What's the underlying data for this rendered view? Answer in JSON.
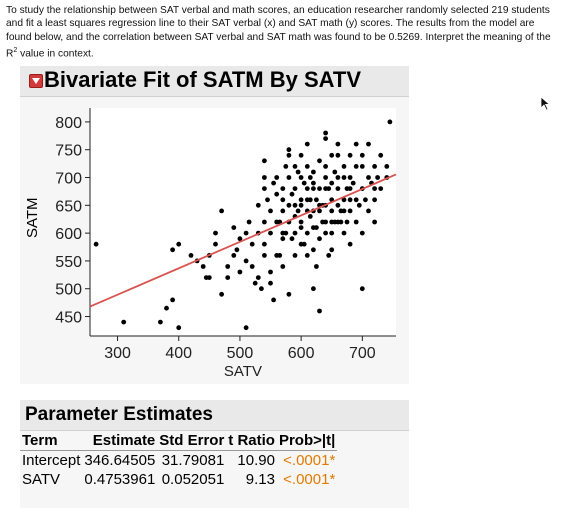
{
  "question": {
    "text": "To study the relationship between SAT verbal and math scores, an education researcher randomly selected 219 students and fit a least squares regression line to their SAT verbal (x) and SAT math (y) scores. The results from the model are found below, and the correlation between SAT verbal and SAT math was found to be 0.5269. Interpret the meaning of the R",
    "sup": "2",
    "tail": " value in context."
  },
  "fit": {
    "title": "Bivariate Fit of SATM By SATV"
  },
  "chart_data": {
    "type": "scatter",
    "title": "Bivariate Fit of SATM By SATV",
    "xlabel": "SATV",
    "ylabel": "SATM",
    "xlim": [
      255,
      755
    ],
    "ylim": [
      415,
      825
    ],
    "xticks": [
      300,
      400,
      500,
      600,
      700
    ],
    "yticks": [
      450,
      500,
      550,
      600,
      650,
      700,
      750,
      800
    ],
    "grid": false,
    "fit_line": {
      "intercept": 346.64505,
      "slope": 0.4753961,
      "color": "#d9534f"
    },
    "points": [
      [
        265,
        580
      ],
      [
        310,
        440
      ],
      [
        370,
        440
      ],
      [
        380,
        465
      ],
      [
        390,
        480
      ],
      [
        390,
        570
      ],
      [
        400,
        580
      ],
      [
        400,
        430
      ],
      [
        430,
        550
      ],
      [
        440,
        540
      ],
      [
        450,
        560
      ],
      [
        450,
        520
      ],
      [
        460,
        600
      ],
      [
        470,
        640
      ],
      [
        470,
        490
      ],
      [
        480,
        540
      ],
      [
        490,
        560
      ],
      [
        490,
        610
      ],
      [
        500,
        530
      ],
      [
        500,
        590
      ],
      [
        510,
        600
      ],
      [
        510,
        550
      ],
      [
        510,
        430
      ],
      [
        515,
        620
      ],
      [
        520,
        540
      ],
      [
        520,
        580
      ],
      [
        530,
        600
      ],
      [
        530,
        650
      ],
      [
        530,
        520
      ],
      [
        540,
        620
      ],
      [
        540,
        580
      ],
      [
        540,
        560
      ],
      [
        540,
        700
      ],
      [
        540,
        730
      ],
      [
        540,
        680
      ],
      [
        550,
        510
      ],
      [
        550,
        640
      ],
      [
        550,
        600
      ],
      [
        550,
        530
      ],
      [
        560,
        560
      ],
      [
        560,
        620
      ],
      [
        560,
        670
      ],
      [
        560,
        700
      ],
      [
        570,
        600
      ],
      [
        570,
        640
      ],
      [
        570,
        540
      ],
      [
        570,
        590
      ],
      [
        570,
        680
      ],
      [
        580,
        490
      ],
      [
        580,
        620
      ],
      [
        580,
        650
      ],
      [
        580,
        700
      ],
      [
        580,
        740
      ],
      [
        580,
        750
      ],
      [
        590,
        560
      ],
      [
        590,
        600
      ],
      [
        590,
        630
      ],
      [
        590,
        680
      ],
      [
        590,
        720
      ],
      [
        600,
        580
      ],
      [
        600,
        650
      ],
      [
        600,
        620
      ],
      [
        600,
        700
      ],
      [
        600,
        740
      ],
      [
        610,
        560
      ],
      [
        610,
        600
      ],
      [
        610,
        660
      ],
      [
        610,
        680
      ],
      [
        610,
        720
      ],
      [
        610,
        760
      ],
      [
        620,
        570
      ],
      [
        620,
        610
      ],
      [
        620,
        640
      ],
      [
        620,
        690
      ],
      [
        620,
        710
      ],
      [
        620,
        500
      ],
      [
        630,
        590
      ],
      [
        630,
        650
      ],
      [
        630,
        680
      ],
      [
        630,
        730
      ],
      [
        630,
        460
      ],
      [
        640,
        600
      ],
      [
        640,
        620
      ],
      [
        640,
        700
      ],
      [
        640,
        720
      ],
      [
        640,
        770
      ],
      [
        640,
        780
      ],
      [
        650,
        570
      ],
      [
        650,
        640
      ],
      [
        650,
        660
      ],
      [
        650,
        690
      ],
      [
        650,
        740
      ],
      [
        650,
        600
      ],
      [
        660,
        620
      ],
      [
        660,
        680
      ],
      [
        660,
        740
      ],
      [
        660,
        760
      ],
      [
        670,
        600
      ],
      [
        670,
        640
      ],
      [
        670,
        700
      ],
      [
        670,
        720
      ],
      [
        670,
        660
      ],
      [
        680,
        580
      ],
      [
        680,
        640
      ],
      [
        680,
        680
      ],
      [
        680,
        700
      ],
      [
        680,
        740
      ],
      [
        690,
        620
      ],
      [
        690,
        660
      ],
      [
        690,
        720
      ],
      [
        690,
        760
      ],
      [
        700,
        500
      ],
      [
        700,
        600
      ],
      [
        700,
        680
      ],
      [
        700,
        740
      ],
      [
        710,
        640
      ],
      [
        710,
        700
      ],
      [
        710,
        760
      ],
      [
        720,
        620
      ],
      [
        720,
        660
      ],
      [
        720,
        720
      ],
      [
        730,
        680
      ],
      [
        730,
        740
      ],
      [
        740,
        700
      ],
      [
        740,
        720
      ],
      [
        745,
        800
      ],
      [
        420,
        560
      ],
      [
        445,
        520
      ],
      [
        460,
        580
      ],
      [
        480,
        520
      ],
      [
        495,
        570
      ],
      [
        525,
        510
      ],
      [
        535,
        500
      ],
      [
        555,
        480
      ],
      [
        565,
        560
      ],
      [
        575,
        600
      ],
      [
        585,
        670
      ],
      [
        595,
        640
      ],
      [
        605,
        690
      ],
      [
        615,
        630
      ],
      [
        625,
        660
      ],
      [
        635,
        620
      ],
      [
        645,
        680
      ],
      [
        655,
        710
      ],
      [
        665,
        640
      ],
      [
        675,
        680
      ],
      [
        685,
        690
      ],
      [
        695,
        650
      ],
      [
        705,
        660
      ],
      [
        715,
        690
      ],
      [
        725,
        700
      ],
      [
        575,
        720
      ],
      [
        605,
        580
      ],
      [
        625,
        540
      ],
      [
        645,
        560
      ],
      [
        665,
        620
      ],
      [
        600,
        610
      ],
      [
        615,
        700
      ],
      [
        635,
        650
      ],
      [
        655,
        620
      ],
      [
        675,
        620
      ],
      [
        585,
        590
      ],
      [
        565,
        620
      ],
      [
        545,
        660
      ],
      [
        555,
        690
      ],
      [
        595,
        710
      ],
      [
        615,
        660
      ],
      [
        640,
        650
      ],
      [
        660,
        700
      ],
      [
        680,
        660
      ],
      [
        700,
        720
      ],
      [
        720,
        680
      ],
      [
        610,
        640
      ],
      [
        625,
        610
      ],
      [
        590,
        650
      ],
      [
        570,
        660
      ],
      [
        660,
        650
      ],
      [
        650,
        620
      ],
      [
        620,
        680
      ],
      [
        600,
        660
      ],
      [
        640,
        680
      ],
      [
        630,
        640
      ]
    ]
  },
  "params": {
    "title": "Parameter Estimates",
    "columns": [
      "Term",
      "Estimate",
      "Std Error",
      "t Ratio",
      "Prob>|t|"
    ],
    "rows": [
      {
        "term": "Intercept",
        "estimate": "346.64505",
        "stderr": "31.79081",
        "tratio": "10.90",
        "prob": "<.0001*"
      },
      {
        "term": "SATV",
        "estimate": "0.4753961",
        "stderr": "0.052051",
        "tratio": "9.13",
        "prob": "<.0001*"
      }
    ],
    "prob_color": "#e07b00"
  }
}
